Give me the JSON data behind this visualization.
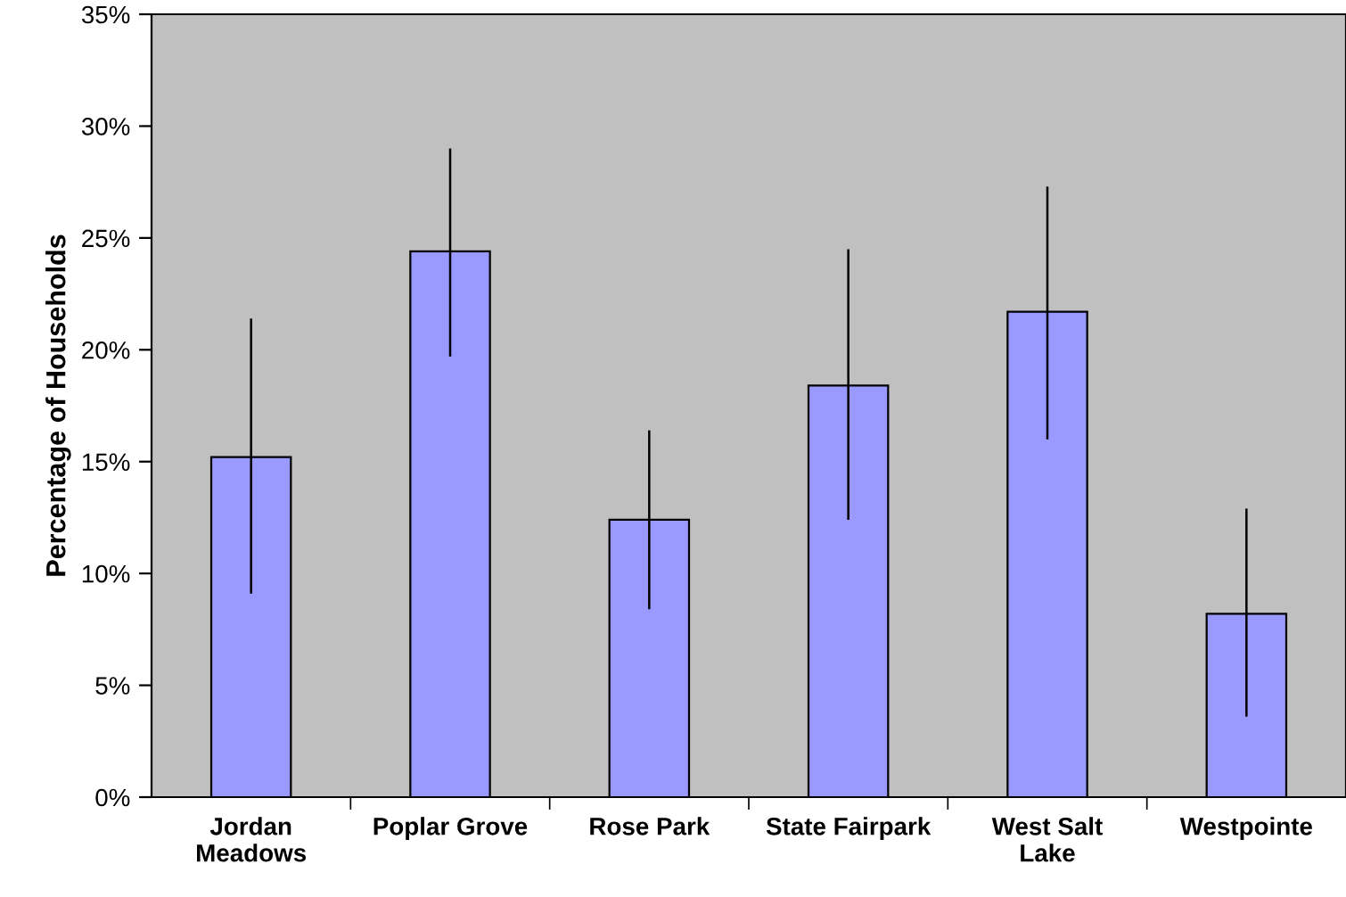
{
  "chart_data": {
    "type": "bar",
    "ylabel": "Percentage of Households",
    "categories": [
      "Jordan\nMeadows",
      "Poplar Grove",
      "Rose Park",
      "State Fairpark",
      "West Salt\nLake",
      "Westpointe"
    ],
    "values": [
      15.2,
      24.4,
      12.4,
      18.4,
      21.7,
      8.2
    ],
    "errors": [
      [
        9.1,
        21.4
      ],
      [
        19.7,
        29.0
      ],
      [
        8.4,
        16.4
      ],
      [
        12.4,
        24.5
      ],
      [
        16.0,
        27.3
      ],
      [
        3.6,
        12.9
      ]
    ],
    "color": "#9999ff",
    "ylim": [
      0,
      35
    ],
    "yticks": [
      {
        "value": 0,
        "label": "0%"
      },
      {
        "value": 5,
        "label": "5%"
      },
      {
        "value": 10,
        "label": "10%"
      },
      {
        "value": 15,
        "label": "15%"
      },
      {
        "value": 20,
        "label": "20%"
      },
      {
        "value": 25,
        "label": "25%"
      },
      {
        "value": 30,
        "label": "30%"
      },
      {
        "value": 35,
        "label": "35%"
      }
    ],
    "grid": false,
    "legend": false
  }
}
